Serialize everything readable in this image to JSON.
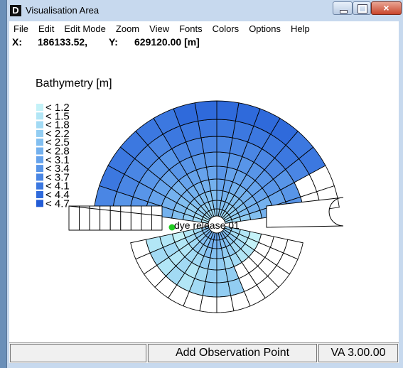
{
  "window": {
    "title": "Visualisation Area",
    "icon": "D"
  },
  "menu": [
    "File",
    "Edit",
    "Edit Mode",
    "Zoom",
    "View",
    "Fonts",
    "Colors",
    "Options",
    "Help"
  ],
  "coordinates": {
    "x_label": "X:",
    "x_value": "186133.52,",
    "y_label": "Y:",
    "y_value": "629120.00 [m]"
  },
  "legend": {
    "title": "Bathymetry [m]",
    "items": [
      {
        "label": "< 1.2",
        "color": "#c4f2f8"
      },
      {
        "label": "< 1.5",
        "color": "#b2e6f6"
      },
      {
        "label": "< 1.8",
        "color": "#a2daf4"
      },
      {
        "label": "< 2.2",
        "color": "#92cdf2"
      },
      {
        "label": "< 2.5",
        "color": "#82bff0"
      },
      {
        "label": "< 2.8",
        "color": "#74b1ee"
      },
      {
        "label": "< 3.1",
        "color": "#66a3ec"
      },
      {
        "label": "< 3.4",
        "color": "#5895e8"
      },
      {
        "label": "< 3.7",
        "color": "#4a86e4"
      },
      {
        "label": "< 4.1",
        "color": "#3c78e0"
      },
      {
        "label": "< 4.4",
        "color": "#2f6adb"
      },
      {
        "label": "< 4.7",
        "color": "#235cd6"
      }
    ]
  },
  "observation_point": {
    "label": "dye release 01",
    "color": "#22cc22"
  },
  "status": {
    "left": "",
    "middle": "Add Observation Point",
    "right": "VA 3.00.00"
  }
}
